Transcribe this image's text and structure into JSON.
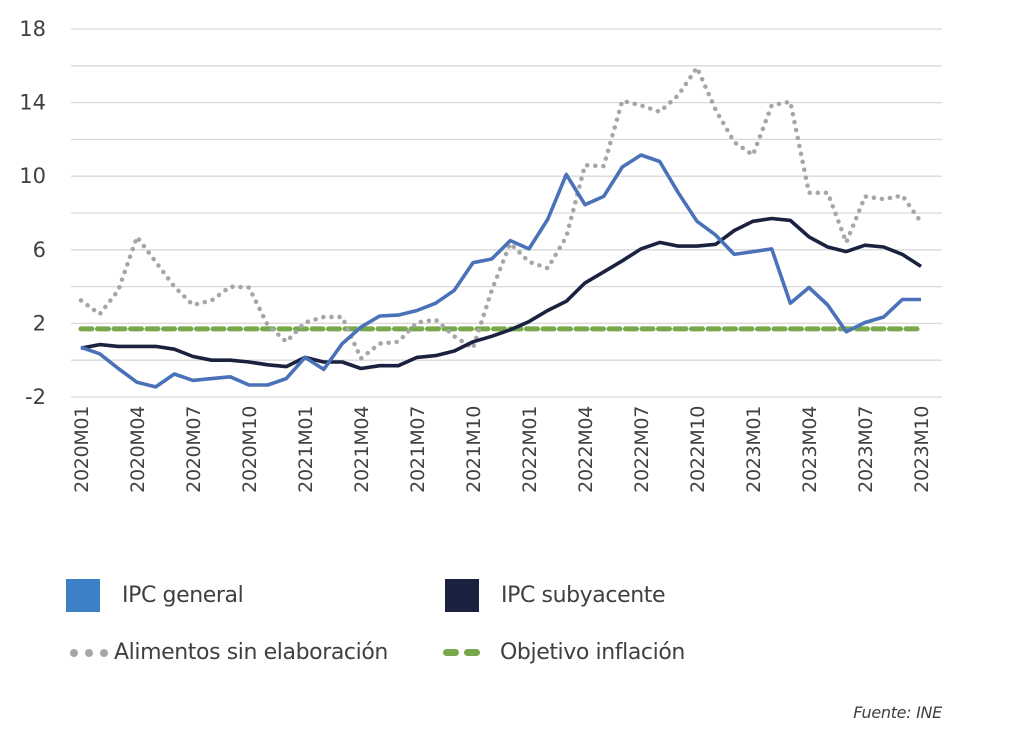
{
  "chart_data": {
    "type": "line",
    "title": "",
    "xlabel": "",
    "ylabel": "",
    "ylim": [
      -2,
      18
    ],
    "yticks": [
      18,
      14,
      10,
      6,
      2,
      -2
    ],
    "grid": true,
    "grid_step": 2,
    "legend_position": "bottom",
    "x": [
      "2020M01",
      "2020M02",
      "2020M03",
      "2020M04",
      "2020M05",
      "2020M06",
      "2020M07",
      "2020M08",
      "2020M09",
      "2020M10",
      "2020M11",
      "2020M12",
      "2021M01",
      "2021M02",
      "2021M03",
      "2021M04",
      "2021M05",
      "2021M06",
      "2021M07",
      "2021M08",
      "2021M09",
      "2021M10",
      "2021M11",
      "2021M12",
      "2022M01",
      "2022M02",
      "2022M03",
      "2022M04",
      "2022M05",
      "2022M06",
      "2022M07",
      "2022M08",
      "2022M09",
      "2022M10",
      "2022M11",
      "2022M12",
      "2023M01",
      "2023M02",
      "2023M03",
      "2023M04",
      "2023M05",
      "2023M06",
      "2023M07",
      "2023M08",
      "2023M09",
      "2023M10"
    ],
    "xtick_labels": [
      "2020M01",
      "2020M04",
      "2020M07",
      "2020M10",
      "2021M01",
      "2021M04",
      "2021M07",
      "2021M10",
      "2022M01",
      "2022M04",
      "2022M07",
      "2022M10",
      "2023M01",
      "2023M04",
      "2023M07",
      "2023M10"
    ],
    "series": [
      {
        "name": "IPC general",
        "style": "solid",
        "color": "#4a72b8",
        "legend_color": "#3c80c6",
        "values": [
          0.7,
          0.35,
          -0.45,
          -1.2,
          -1.45,
          -0.75,
          -1.1,
          -1.0,
          -0.9,
          -1.35,
          -1.35,
          -1.0,
          0.15,
          -0.5,
          0.9,
          1.8,
          2.4,
          2.45,
          2.7,
          3.1,
          3.8,
          5.3,
          5.5,
          6.5,
          6.05,
          7.65,
          10.1,
          8.45,
          8.9,
          10.5,
          11.15,
          10.8,
          9.1,
          7.55,
          6.8,
          5.75,
          5.9,
          6.05,
          3.1,
          3.95,
          3.0,
          1.55,
          2.05,
          2.35,
          3.3,
          3.3
        ]
      },
      {
        "name": "IPC subyacente",
        "style": "solid",
        "color": "#1b2240",
        "legend_color": "#1b2240",
        "values": [
          0.65,
          0.85,
          0.75,
          0.75,
          0.75,
          0.6,
          0.2,
          0.0,
          0.0,
          -0.1,
          -0.25,
          -0.35,
          0.15,
          -0.1,
          -0.1,
          -0.45,
          -0.3,
          -0.3,
          0.15,
          0.25,
          0.5,
          1.0,
          1.3,
          1.65,
          2.1,
          2.7,
          3.2,
          4.2,
          4.8,
          5.4,
          6.05,
          6.4,
          6.2,
          6.2,
          6.3,
          7.05,
          7.55,
          7.7,
          7.6,
          6.7,
          6.15,
          5.9,
          6.25,
          6.15,
          5.75,
          5.1
        ]
      },
      {
        "name": "Alimentos sin elaboración",
        "style": "dotted",
        "color": "#a6a6a6",
        "legend_color": "#a6a6a6",
        "values": [
          3.25,
          2.5,
          3.8,
          6.7,
          5.35,
          4.0,
          3.0,
          3.25,
          4.0,
          3.95,
          1.9,
          1.0,
          2.05,
          2.35,
          2.35,
          0.1,
          0.9,
          1.0,
          2.05,
          2.2,
          1.3,
          0.65,
          3.8,
          6.35,
          5.35,
          5.0,
          6.7,
          10.6,
          10.55,
          14.1,
          13.85,
          13.5,
          14.4,
          15.9,
          13.6,
          11.85,
          11.15,
          13.85,
          14.05,
          9.1,
          9.1,
          6.4,
          8.9,
          8.75,
          8.95,
          7.5
        ]
      },
      {
        "name": "Objetivo inflación",
        "style": "dashed",
        "color": "#77a84a",
        "legend_color": "#77a84a",
        "values": [
          1.7,
          1.7,
          1.7,
          1.7,
          1.7,
          1.7,
          1.7,
          1.7,
          1.7,
          1.7,
          1.7,
          1.7,
          1.7,
          1.7,
          1.7,
          1.7,
          1.7,
          1.7,
          1.7,
          1.7,
          1.7,
          1.7,
          1.7,
          1.7,
          1.7,
          1.7,
          1.7,
          1.7,
          1.7,
          1.7,
          1.7,
          1.7,
          1.7,
          1.7,
          1.7,
          1.7,
          1.7,
          1.7,
          1.7,
          1.7,
          1.7,
          1.7,
          1.7,
          1.7,
          1.7,
          1.7
        ]
      }
    ],
    "source": "Fuente: INE"
  },
  "legend": {
    "items": [
      {
        "label": "IPC general"
      },
      {
        "label": "IPC subyacente"
      },
      {
        "label": "Alimentos sin elaboración"
      },
      {
        "label": "Objetivo inflación"
      }
    ]
  },
  "footer": {
    "source": "Fuente: INE"
  }
}
